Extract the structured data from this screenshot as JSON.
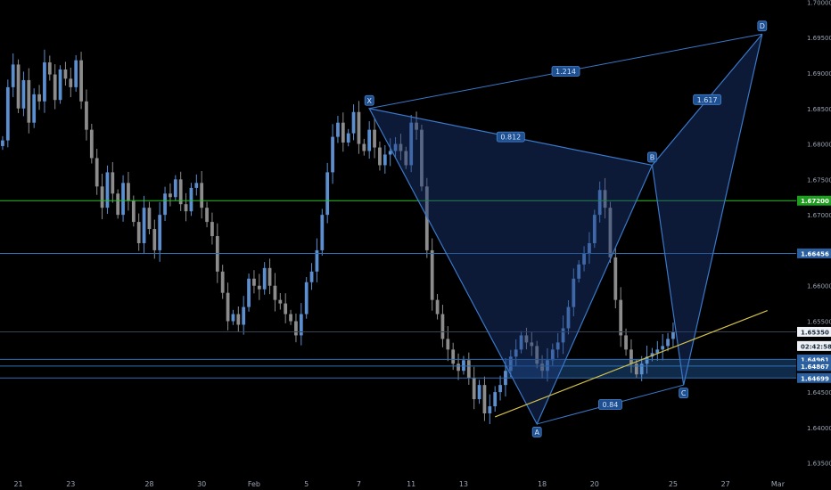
{
  "chart_data": {
    "type": "candlestick",
    "y_range": [
      1.6327,
      1.7003
    ],
    "y_ticks": [
      "1.70000",
      "1.69500",
      "1.69000",
      "1.68500",
      "1.68000",
      "1.67500",
      "1.67000",
      "1.66500",
      "1.66000",
      "1.65500",
      "1.64500",
      "1.64000",
      "1.63500"
    ],
    "x_ticks": [
      {
        "label": "21",
        "bar": 3
      },
      {
        "label": "23",
        "bar": 13
      },
      {
        "label": "28",
        "bar": 28
      },
      {
        "label": "30",
        "bar": 38
      },
      {
        "label": "Feb",
        "bar": 48
      },
      {
        "label": "5",
        "bar": 58
      },
      {
        "label": "7",
        "bar": 68
      },
      {
        "label": "11",
        "bar": 78
      },
      {
        "label": "13",
        "bar": 88
      },
      {
        "label": "18",
        "bar": 103
      },
      {
        "label": "20",
        "bar": 113
      },
      {
        "label": "25",
        "bar": 128
      },
      {
        "label": "27",
        "bar": 138
      },
      {
        "label": "Mar",
        "bar": 148
      }
    ],
    "total_bars": 152,
    "close_series": [
      1.6805,
      1.688,
      1.6912,
      1.685,
      1.689,
      1.683,
      1.687,
      1.686,
      1.6915,
      1.6898,
      1.6862,
      1.6905,
      1.6892,
      1.688,
      1.6918,
      1.686,
      1.682,
      1.678,
      1.674,
      1.671,
      1.676,
      1.673,
      1.67,
      1.6745,
      1.672,
      1.669,
      1.666,
      1.671,
      1.668,
      1.665,
      1.67,
      1.673,
      1.6725,
      1.675,
      1.6715,
      1.6705,
      1.6738,
      1.6745,
      1.671,
      1.669,
      1.667,
      1.662,
      1.659,
      1.655,
      1.656,
      1.6545,
      1.657,
      1.661,
      1.66,
      1.6595,
      1.6625,
      1.66,
      1.658,
      1.6575,
      1.656,
      1.655,
      1.653,
      1.656,
      1.6605,
      1.662,
      1.665,
      1.67,
      1.676,
      1.681,
      1.683,
      1.6802,
      1.6815,
      1.6845,
      1.68,
      1.679,
      1.682,
      1.6795,
      1.677,
      1.6785,
      1.679,
      1.68,
      1.679,
      1.677,
      1.683,
      1.682,
      1.674,
      1.665,
      1.658,
      1.656,
      1.6525,
      1.651,
      1.649,
      1.648,
      1.6495,
      1.647,
      1.644,
      1.646,
      1.642,
      1.643,
      1.645,
      1.646,
      1.648,
      1.65,
      1.651,
      1.653,
      1.652,
      1.6515,
      1.649,
      1.648,
      1.6495,
      1.651,
      1.652,
      1.654,
      1.657,
      1.661,
      1.663,
      1.6645,
      1.666,
      1.67,
      1.6735,
      1.671,
      1.664,
      1.658,
      1.653,
      1.651,
      1.649,
      1.6475,
      1.649,
      1.65,
      1.6505,
      1.651,
      1.6515,
      1.6525,
      1.6535
    ],
    "horizontal_levels": [
      {
        "value": 1.672,
        "label": "1.67200",
        "color": "#27c227",
        "label_bg": "#1f9d1f",
        "label_color": "#ffffff"
      },
      {
        "value": 1.66456,
        "label": "1.66456",
        "color": "#2f6fb3",
        "label_bg": "#2a5fa0",
        "label_color": "#ffffff"
      },
      {
        "value": 1.6535,
        "label": "1.65350",
        "color": "#3b4350",
        "label_bg": "#eef2f7",
        "label_color": "#1a2a3a"
      },
      {
        "value": 1.6515,
        "label": "02:42:58",
        "color": "none",
        "label_bg": "#eef2f7",
        "label_color": "#1a2a3a"
      },
      {
        "value": 1.64961,
        "label": "1.64961",
        "color": "#2f6fb3",
        "label_bg": "#2a5fa0",
        "label_color": "#ffffff"
      },
      {
        "value": 1.64867,
        "label": "1.64867",
        "color": "#2f6fb3",
        "label_bg": "#2a5fa0",
        "label_color": "#ffffff"
      },
      {
        "value": 1.64699,
        "label": "1.64699",
        "color": "#2f6fb3",
        "label_bg": "#2a5fa0",
        "label_color": "#ffffff"
      }
    ],
    "zone": {
      "top": 1.64961,
      "bottom": 1.64699,
      "from_bar": 0
    },
    "pattern": {
      "points": [
        {
          "name": "X",
          "bar": 70,
          "price": 1.685
        },
        {
          "name": "A",
          "bar": 102,
          "price": 1.6405
        },
        {
          "name": "B",
          "bar": 124,
          "price": 1.677
        },
        {
          "name": "C",
          "bar": 130,
          "price": 1.646
        },
        {
          "name": "D",
          "bar": 145,
          "price": 1.6955
        }
      ],
      "ratios": [
        {
          "label": "1.214",
          "from": "X",
          "to": "D"
        },
        {
          "label": "0.812",
          "from": "X",
          "to": "B"
        },
        {
          "label": "1.617",
          "from": "B",
          "to": "D"
        },
        {
          "label": "0.84",
          "from": "A",
          "to": "C"
        }
      ]
    },
    "trendline": {
      "from_bar": 94,
      "from_price": 1.6415,
      "to_bar": 146,
      "to_price": 1.6565,
      "color": "#d4c24a"
    }
  }
}
